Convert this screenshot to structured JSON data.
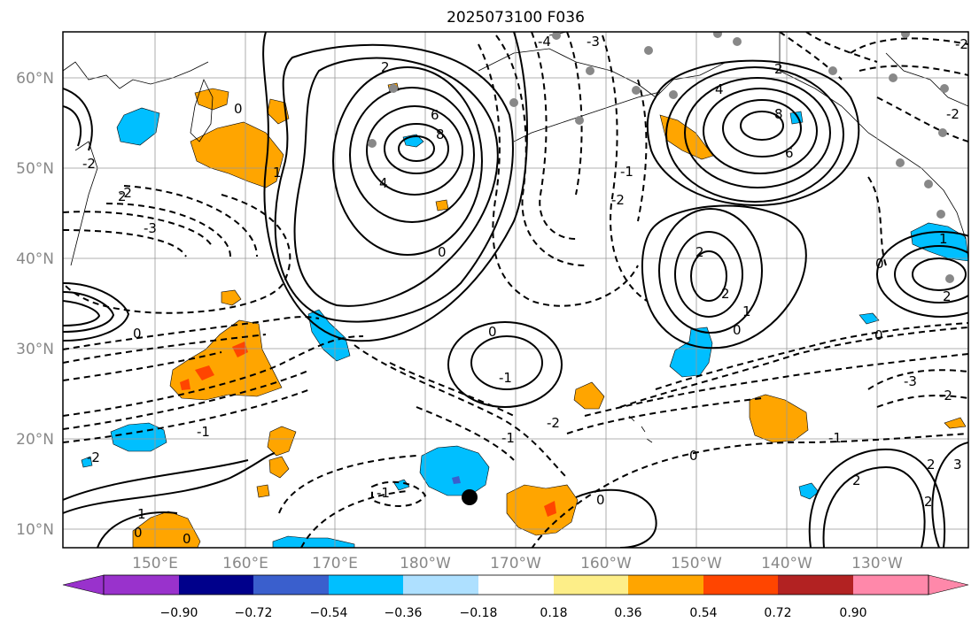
{
  "title": "2025073100 F036",
  "map": {
    "lat_labels": [
      "60°N",
      "50°N",
      "40°N",
      "30°N",
      "20°N",
      "10°N"
    ],
    "lon_labels": [
      "150°E",
      "160°E",
      "170°E",
      "180°W",
      "170°W",
      "160°W",
      "150°W",
      "140°W",
      "130°W"
    ],
    "contour_labels": [
      "-4",
      "-3",
      "-2",
      "-1",
      "0",
      "1",
      "2",
      "4",
      "6",
      "8",
      "-2",
      "-1",
      "0",
      "1",
      "2",
      "0",
      "-1",
      "-2",
      "-3",
      "2",
      "4",
      "6",
      "8",
      "0",
      "2",
      "-2",
      "0",
      "1",
      "2",
      "0",
      "-1",
      "-2",
      "-3",
      "2",
      "0",
      "-1",
      "-2",
      "-2",
      "2",
      "0",
      "1",
      "2",
      "3",
      "0",
      "-2",
      "0",
      "0",
      "2",
      "-1"
    ],
    "shading_colors": {
      "positive_light": "#fdee88",
      "positive_mid": "#ffa500",
      "positive_strong": "#ff4500",
      "negative_light": "#aee0ff",
      "negative_mid": "#00bfff",
      "negative_strong": "#3a5fcd"
    }
  },
  "colorbar": {
    "labels": [
      "−0.90",
      "−0.72",
      "−0.54",
      "−0.36",
      "−0.18",
      "0.18",
      "0.36",
      "0.54",
      "0.72",
      "0.90"
    ],
    "colors": [
      "#9932cc",
      "#00008b",
      "#3a5fcd",
      "#00bfff",
      "#aee0ff",
      "#ffffff",
      "#fdee88",
      "#ffa500",
      "#ff4500",
      "#b22222",
      "#ff88aa",
      "#ff88aa"
    ]
  }
}
